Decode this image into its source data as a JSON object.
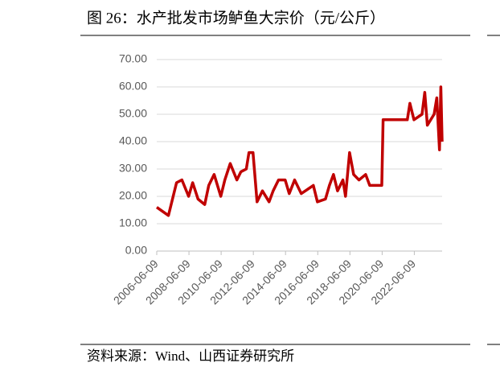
{
  "chart_data": {
    "type": "line",
    "title": "图 26：水产批发市场鲈鱼大宗价（元/公斤）",
    "source": "资料来源：Wind、山西证券研究所",
    "x": [
      "2006-06-09",
      "2007-03-01",
      "2007-06-01",
      "2007-09-01",
      "2008-01-01",
      "2008-06-01",
      "2008-09-01",
      "2009-01-01",
      "2009-06-01",
      "2009-09-01",
      "2010-01-01",
      "2010-06-01",
      "2010-09-01",
      "2011-01-01",
      "2011-06-01",
      "2011-09-01",
      "2012-01-01",
      "2012-03-01",
      "2012-06-01",
      "2012-09-01",
      "2013-01-01",
      "2013-06-01",
      "2013-09-01",
      "2014-01-01",
      "2014-06-01",
      "2014-09-01",
      "2015-01-01",
      "2015-06-01",
      "2015-09-01",
      "2016-03-01",
      "2016-06-01",
      "2016-12-01",
      "2017-03-01",
      "2017-06-01",
      "2017-09-01",
      "2018-01-01",
      "2018-03-01",
      "2018-06-01",
      "2018-09-01",
      "2019-01-01",
      "2019-06-01",
      "2019-09-01",
      "2020-06-01",
      "2020-07-01",
      "2021-06-01",
      "2022-01-01",
      "2022-03-01",
      "2022-06-01",
      "2022-12-01",
      "2023-02-01",
      "2023-04-01",
      "2023-09-01",
      "2023-11-01",
      "2024-01-01",
      "2024-02-01",
      "2024-03-01"
    ],
    "series": [
      {
        "name": "鲈鱼大宗价",
        "color": "#c00000",
        "values": [
          16,
          13,
          19,
          25,
          26,
          20,
          25,
          19,
          17,
          24,
          28,
          20,
          26,
          32,
          26,
          29,
          30,
          36,
          36,
          18,
          22,
          18,
          22,
          26,
          26,
          21,
          26,
          21,
          22,
          24,
          18,
          19,
          24,
          28,
          22,
          26,
          20,
          36,
          28,
          26,
          28,
          24,
          24,
          48,
          48,
          48,
          54,
          48,
          50,
          58,
          46,
          50,
          56,
          37,
          60,
          40
        ]
      }
    ],
    "xlim": [
      "2006-06-09",
      "2024-03-01"
    ],
    "xticks": [
      "2006-06-09",
      "2008-06-09",
      "2010-06-09",
      "2012-06-09",
      "2014-06-09",
      "2016-06-09",
      "2018-06-09",
      "2020-06-09",
      "2022-06-09"
    ],
    "ylim": [
      0,
      70
    ],
    "yticks": [
      {
        "value": 0,
        "label": "0.00"
      },
      {
        "value": 10,
        "label": "10.00"
      },
      {
        "value": 20,
        "label": "20.00"
      },
      {
        "value": 30,
        "label": "30.00"
      },
      {
        "value": 40,
        "label": "40.00"
      },
      {
        "value": 50,
        "label": "50.00"
      },
      {
        "value": 60,
        "label": "60.00"
      },
      {
        "value": 70,
        "label": "70.00"
      }
    ],
    "grid": true
  }
}
